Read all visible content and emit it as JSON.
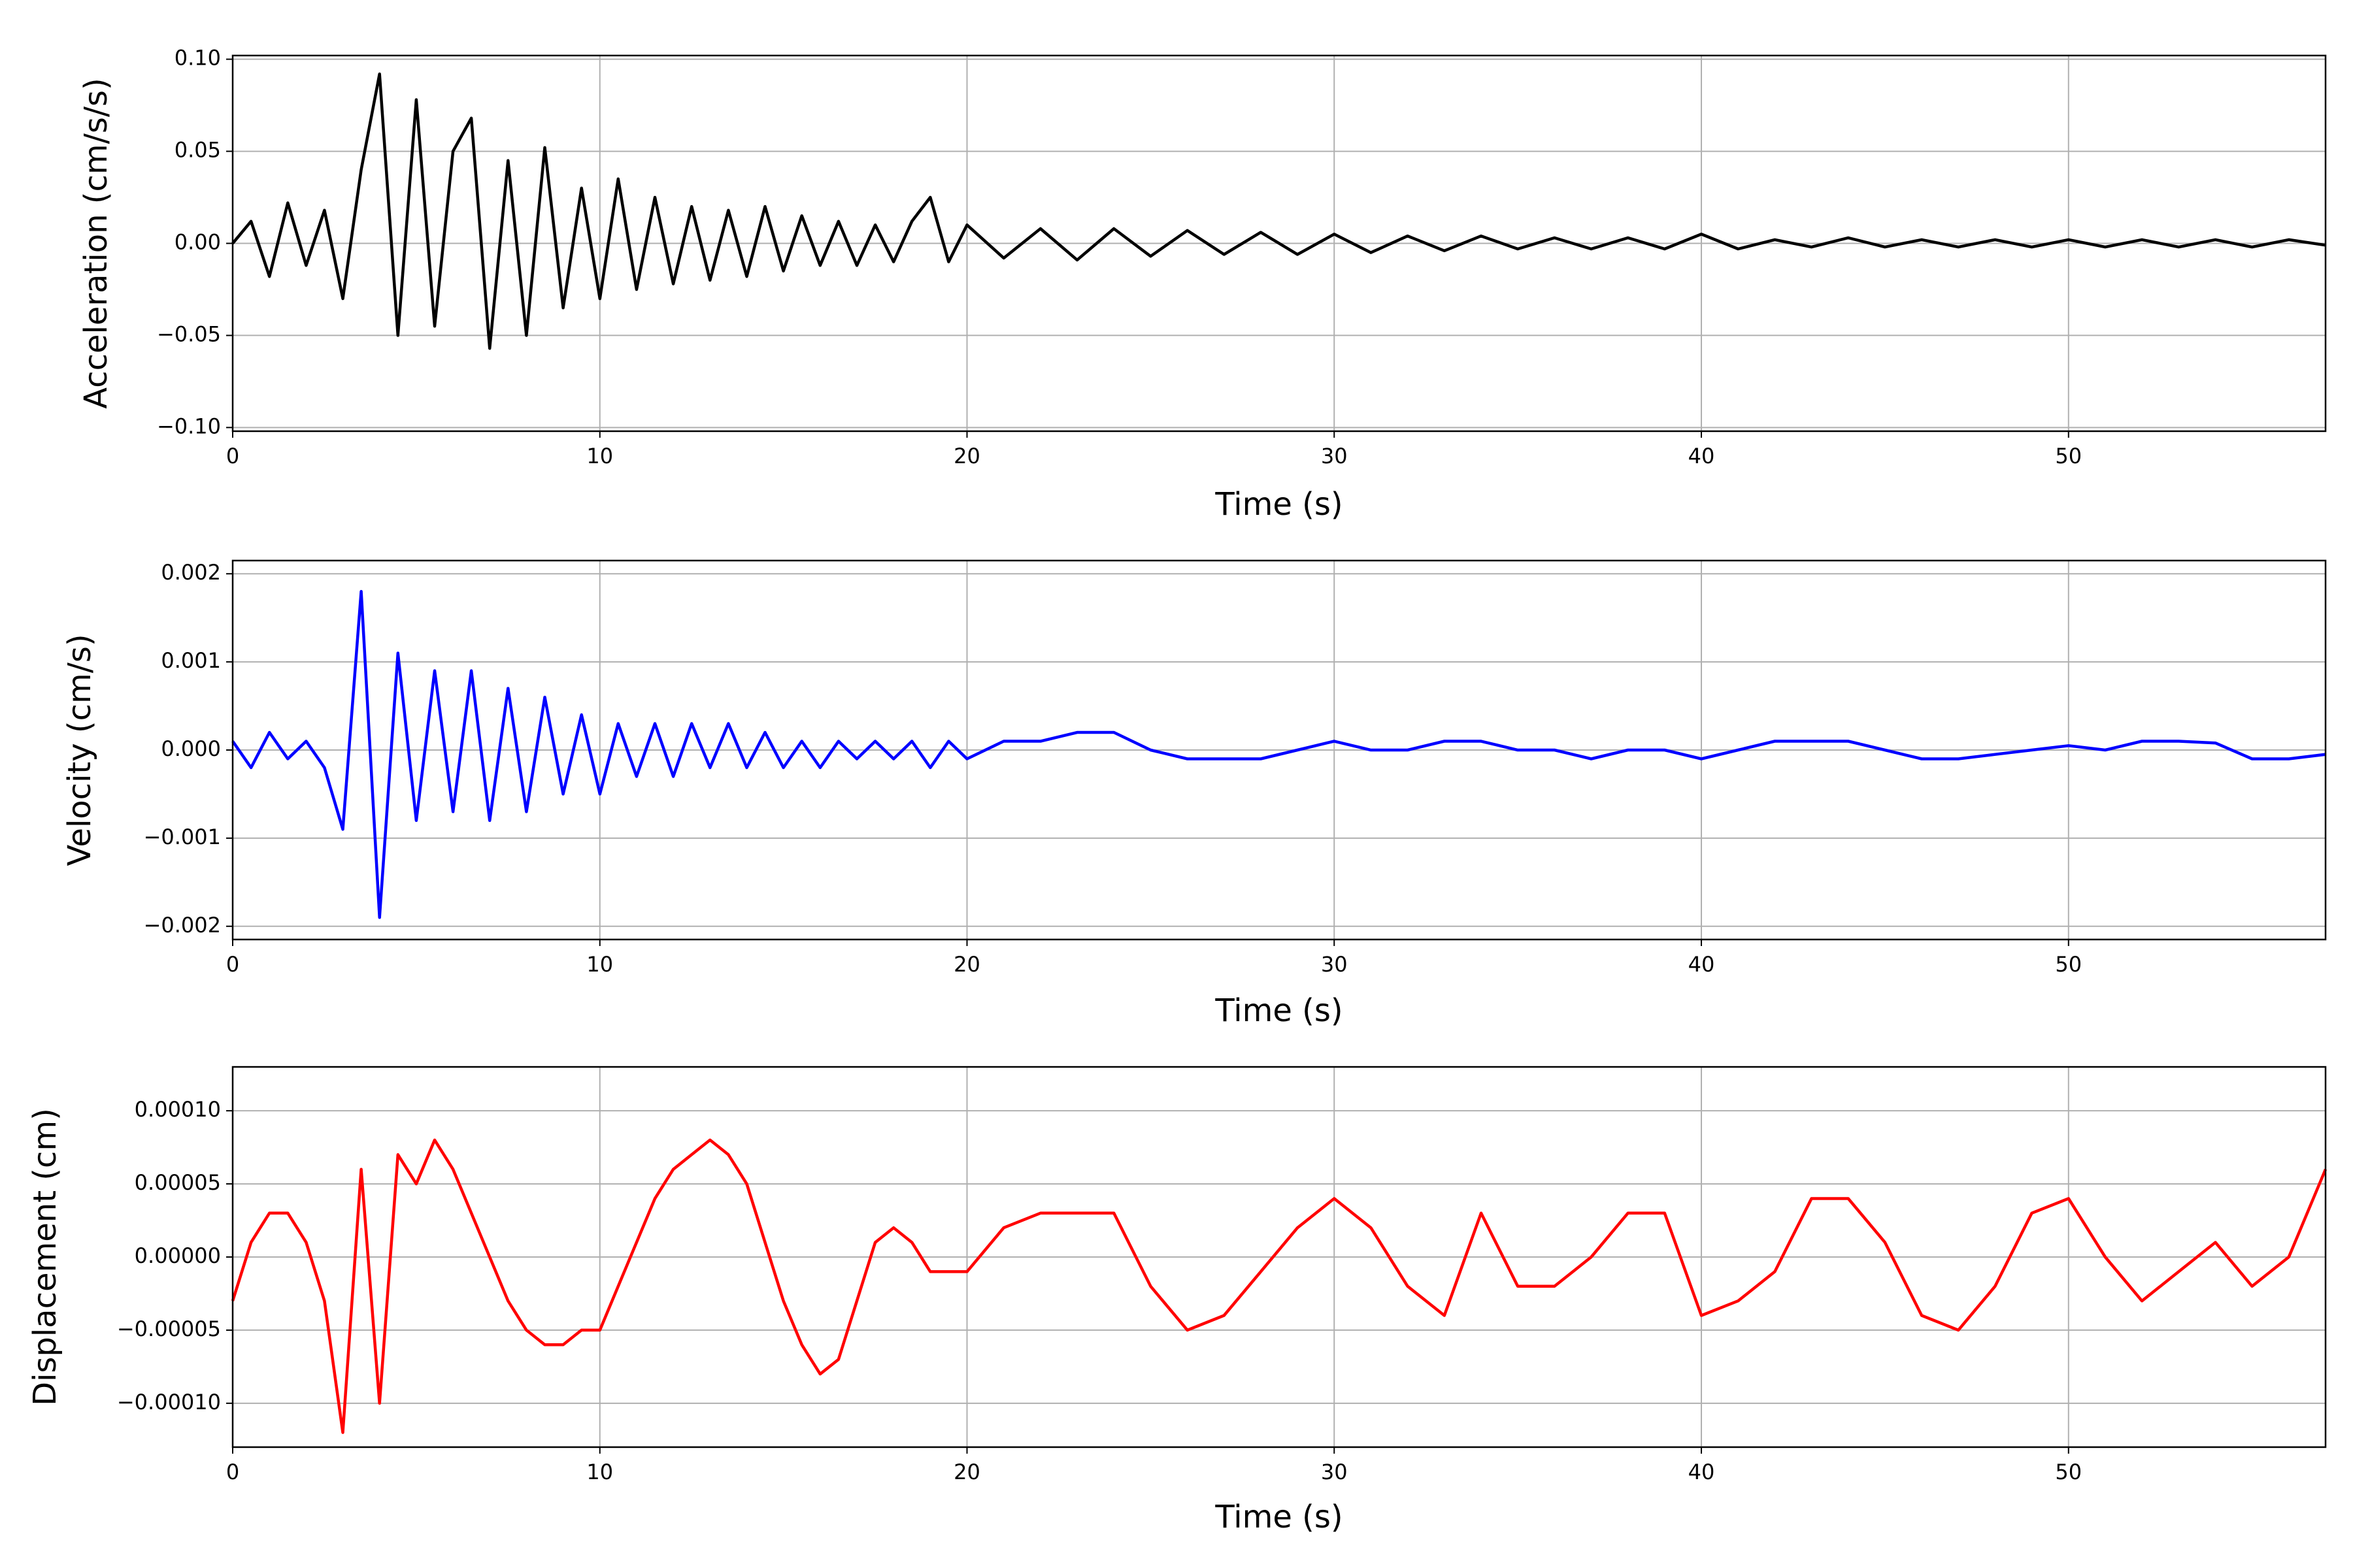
{
  "chart_data": [
    {
      "type": "line",
      "ylabel": "Acceleration (cm/s/s)",
      "xlabel": "Time (s)",
      "color": "#000000",
      "grid": true,
      "xlim": [
        0,
        57
      ],
      "xticks": [
        0,
        10,
        20,
        30,
        40,
        50
      ],
      "ylim": [
        -0.102,
        0.102
      ],
      "yticks": [
        {
          "value": -0.1,
          "label": "−0.10"
        },
        {
          "value": -0.05,
          "label": "−0.05"
        },
        {
          "value": 0,
          "label": "0.00"
        },
        {
          "value": 0.05,
          "label": "0.05"
        },
        {
          "value": 0.1,
          "label": "0.10"
        }
      ],
      "x": [
        0,
        0.5,
        1,
        1.5,
        2,
        2.5,
        3,
        3.5,
        4,
        4.5,
        5,
        5.5,
        6,
        6.5,
        7,
        7.5,
        8,
        8.5,
        9,
        9.5,
        10,
        10.5,
        11,
        11.5,
        12,
        12.5,
        13,
        13.5,
        14,
        14.5,
        15,
        15.5,
        16,
        16.5,
        17,
        17.5,
        18,
        18.5,
        19,
        19.5,
        20,
        21,
        22,
        23,
        24,
        25,
        26,
        27,
        28,
        29,
        30,
        31,
        32,
        33,
        34,
        35,
        36,
        37,
        38,
        39,
        40,
        41,
        42,
        43,
        44,
        45,
        46,
        47,
        48,
        49,
        50,
        51,
        52,
        53,
        54,
        55,
        56,
        57
      ],
      "values": [
        0,
        0.012,
        -0.018,
        0.022,
        -0.012,
        0.018,
        -0.03,
        0.04,
        0.092,
        -0.05,
        0.078,
        -0.045,
        0.05,
        0.068,
        -0.057,
        0.045,
        -0.05,
        0.052,
        -0.035,
        0.03,
        -0.03,
        0.035,
        -0.025,
        0.025,
        -0.022,
        0.02,
        -0.02,
        0.018,
        -0.018,
        0.02,
        -0.015,
        0.015,
        -0.012,
        0.012,
        -0.012,
        0.01,
        -0.01,
        0.012,
        0.025,
        -0.01,
        0.01,
        -0.008,
        0.008,
        -0.009,
        0.008,
        -0.007,
        0.007,
        -0.006,
        0.006,
        -0.006,
        0.005,
        -0.005,
        0.004,
        -0.004,
        0.004,
        -0.003,
        0.003,
        -0.003,
        0.003,
        -0.003,
        0.005,
        -0.003,
        0.002,
        -0.002,
        0.003,
        -0.002,
        0.002,
        -0.002,
        0.002,
        -0.002,
        0.002,
        -0.002,
        0.002,
        -0.002,
        0.002,
        -0.002,
        0.002,
        -0.001
      ]
    },
    {
      "type": "line",
      "ylabel": "Velocity (cm/s)",
      "xlabel": "Time (s)",
      "color": "#0000ff",
      "grid": true,
      "xlim": [
        0,
        57
      ],
      "xticks": [
        0,
        10,
        20,
        30,
        40,
        50
      ],
      "ylim": [
        -0.00215,
        0.00215
      ],
      "yticks": [
        {
          "value": -0.002,
          "label": "−0.002"
        },
        {
          "value": -0.001,
          "label": "−0.001"
        },
        {
          "value": 0,
          "label": "0.000"
        },
        {
          "value": 0.001,
          "label": "0.001"
        },
        {
          "value": 0.002,
          "label": "0.002"
        }
      ],
      "x": [
        0,
        0.5,
        1,
        1.5,
        2,
        2.5,
        3,
        3.5,
        4,
        4.5,
        5,
        5.5,
        6,
        6.5,
        7,
        7.5,
        8,
        8.5,
        9,
        9.5,
        10,
        10.5,
        11,
        11.5,
        12,
        12.5,
        13,
        13.5,
        14,
        14.5,
        15,
        15.5,
        16,
        16.5,
        17,
        17.5,
        18,
        18.5,
        19,
        19.5,
        20,
        21,
        22,
        23,
        24,
        25,
        26,
        27,
        28,
        29,
        30,
        31,
        32,
        33,
        34,
        35,
        36,
        37,
        38,
        39,
        40,
        41,
        42,
        43,
        44,
        45,
        46,
        47,
        48,
        49,
        50,
        51,
        52,
        53,
        54,
        55,
        56,
        57
      ],
      "values": [
        0.0001,
        -0.0002,
        0.0002,
        -0.0001,
        0.0001,
        -0.0002,
        -0.0009,
        0.0018,
        -0.0019,
        0.0011,
        -0.0008,
        0.0009,
        -0.0007,
        0.0009,
        -0.0008,
        0.0007,
        -0.0007,
        0.0006,
        -0.0005,
        0.0004,
        -0.0005,
        0.0003,
        -0.0003,
        0.0003,
        -0.0003,
        0.0003,
        -0.0002,
        0.0003,
        -0.0002,
        0.0002,
        -0.0002,
        0.0001,
        -0.0002,
        0.0001,
        -0.0001,
        0.0001,
        -0.0001,
        0.0001,
        -0.0002,
        0.0001,
        -0.0001,
        0.0001,
        0.0001,
        0.0002,
        0.0002,
        0,
        -0.0001,
        -0.0001,
        -0.0001,
        0,
        0.0001,
        0,
        0,
        0.0001,
        0.0001,
        0,
        0,
        -0.0001,
        0,
        0,
        -0.0001,
        0,
        0.0001,
        0.0001,
        0.0001,
        0,
        -0.0001,
        -0.0001,
        -5e-05,
        0,
        5e-05,
        0,
        0.0001,
        0.0001,
        8e-05,
        -0.0001,
        -0.0001,
        -5e-05
      ]
    },
    {
      "type": "line",
      "ylabel": "Displacement (cm)",
      "xlabel": "Time (s)",
      "color": "#ff0000",
      "grid": true,
      "xlim": [
        0,
        57
      ],
      "xticks": [
        0,
        10,
        20,
        30,
        40,
        50
      ],
      "ylim": [
        -0.00013,
        0.00013
      ],
      "yticks": [
        {
          "value": -0.0001,
          "label": "−0.00010"
        },
        {
          "value": -5e-05,
          "label": "−0.00005"
        },
        {
          "value": 0,
          "label": "0.00000"
        },
        {
          "value": 5e-05,
          "label": "0.00005"
        },
        {
          "value": 0.0001,
          "label": "0.00010"
        }
      ],
      "x": [
        0,
        0.5,
        1,
        1.5,
        2,
        2.5,
        3,
        3.5,
        4,
        4.5,
        5,
        5.5,
        6,
        6.5,
        7,
        7.5,
        8,
        8.5,
        9,
        9.5,
        10,
        10.5,
        11,
        11.5,
        12,
        12.5,
        13,
        13.5,
        14,
        14.5,
        15,
        15.5,
        16,
        16.5,
        17,
        17.5,
        18,
        18.5,
        19,
        19.5,
        20,
        21,
        22,
        23,
        24,
        25,
        26,
        27,
        28,
        29,
        30,
        31,
        32,
        33,
        34,
        35,
        36,
        37,
        38,
        39,
        40,
        41,
        42,
        43,
        44,
        45,
        46,
        47,
        48,
        49,
        50,
        51,
        52,
        53,
        54,
        55,
        56,
        57
      ],
      "values": [
        -3e-05,
        1e-05,
        3e-05,
        3e-05,
        1e-05,
        -3e-05,
        -0.00012,
        6e-05,
        -0.0001,
        7e-05,
        5e-05,
        8e-05,
        6e-05,
        3e-05,
        0,
        -3e-05,
        -5e-05,
        -6e-05,
        -6e-05,
        -5e-05,
        -5e-05,
        -2e-05,
        1e-05,
        4e-05,
        6e-05,
        7e-05,
        8e-05,
        7e-05,
        5e-05,
        1e-05,
        -3e-05,
        -6e-05,
        -8e-05,
        -7e-05,
        -3e-05,
        1e-05,
        2e-05,
        1e-05,
        -1e-05,
        -1e-05,
        -1e-05,
        2e-05,
        3e-05,
        3e-05,
        3e-05,
        -2e-05,
        -5e-05,
        -4e-05,
        -1e-05,
        2e-05,
        4e-05,
        2e-05,
        -2e-05,
        -4e-05,
        3e-05,
        -2e-05,
        -2e-05,
        0,
        3e-05,
        3e-05,
        -4e-05,
        -3e-05,
        -1e-05,
        4e-05,
        4e-05,
        1e-05,
        -4e-05,
        -5e-05,
        -2e-05,
        3e-05,
        4e-05,
        0,
        -3e-05,
        -1e-05,
        1e-05,
        -2e-05,
        0,
        6e-05
      ]
    }
  ]
}
